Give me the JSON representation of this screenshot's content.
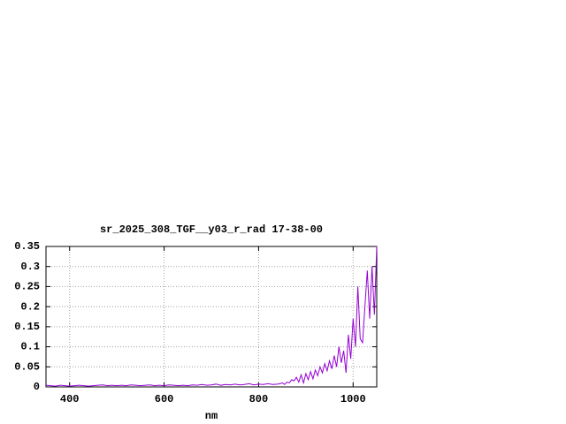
{
  "chart_data": {
    "type": "line",
    "title": "sr_2025_308_TGF__y03_r_rad 17-38-00",
    "xlabel": "nm",
    "x": [
      350,
      360,
      370,
      380,
      390,
      400,
      410,
      420,
      430,
      440,
      450,
      460,
      470,
      480,
      490,
      500,
      510,
      520,
      530,
      540,
      550,
      560,
      570,
      580,
      590,
      600,
      610,
      620,
      630,
      640,
      650,
      660,
      670,
      680,
      690,
      700,
      710,
      720,
      730,
      740,
      750,
      760,
      770,
      780,
      790,
      800,
      810,
      820,
      830,
      840,
      845,
      850,
      855,
      860,
      865,
      870,
      875,
      880,
      885,
      890,
      895,
      900,
      905,
      910,
      915,
      920,
      925,
      930,
      935,
      940,
      945,
      950,
      955,
      960,
      965,
      970,
      975,
      980,
      985,
      990,
      995,
      1000,
      1005,
      1010,
      1015,
      1020,
      1025,
      1030,
      1035,
      1040,
      1045,
      1050
    ],
    "series": [
      {
        "name": "sr_2025_308_TGF__y03_r_rad",
        "color": "#9400d3",
        "values": [
          0.004,
          0.003,
          0.002,
          0.004,
          0.003,
          0.002,
          0.003,
          0.004,
          0.003,
          0.002,
          0.003,
          0.004,
          0.005,
          0.003,
          0.004,
          0.003,
          0.004,
          0.003,
          0.005,
          0.004,
          0.003,
          0.004,
          0.005,
          0.003,
          0.004,
          0.003,
          0.005,
          0.004,
          0.003,
          0.004,
          0.003,
          0.005,
          0.004,
          0.006,
          0.004,
          0.005,
          0.007,
          0.004,
          0.006,
          0.005,
          0.007,
          0.005,
          0.006,
          0.008,
          0.005,
          0.007,
          0.006,
          0.008,
          0.006,
          0.007,
          0.008,
          0.01,
          0.006,
          0.012,
          0.01,
          0.018,
          0.015,
          0.024,
          0.012,
          0.03,
          0.01,
          0.033,
          0.018,
          0.038,
          0.02,
          0.042,
          0.028,
          0.05,
          0.035,
          0.058,
          0.04,
          0.065,
          0.045,
          0.078,
          0.05,
          0.1,
          0.06,
          0.09,
          0.035,
          0.13,
          0.07,
          0.17,
          0.1,
          0.25,
          0.12,
          0.11,
          0.2,
          0.29,
          0.17,
          0.3,
          0.18,
          0.35
        ]
      }
    ],
    "xlim": [
      350,
      1050
    ],
    "xticks": [
      400,
      600,
      800,
      1000
    ],
    "ylim": [
      0,
      0.35
    ],
    "yticks": [
      0,
      0.05,
      0.1,
      0.15,
      0.2,
      0.25,
      0.3,
      0.35
    ],
    "grid": true
  }
}
